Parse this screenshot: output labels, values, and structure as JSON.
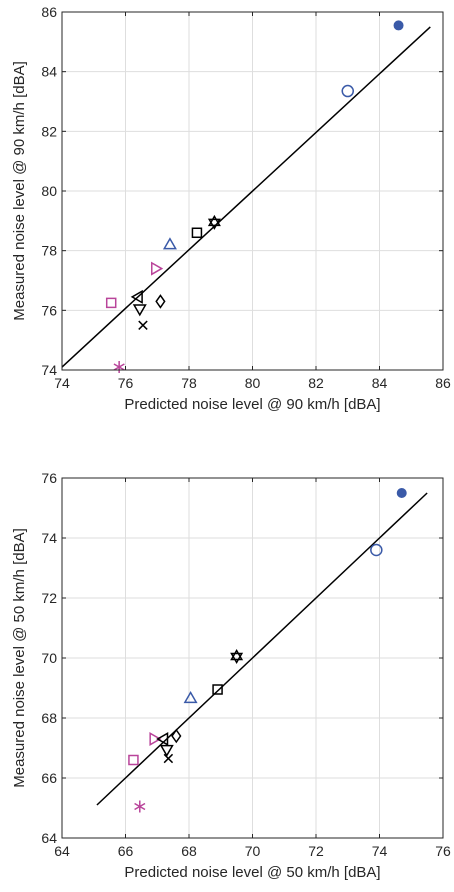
{
  "colors": {
    "black": "#000000",
    "blue": "#3a5aa8",
    "magenta": "#b9449a",
    "grid": "#dedede",
    "axis": "#262626"
  },
  "chart_data": [
    {
      "type": "scatter",
      "xlabel": "Predicted noise level @ 90 km/h [dBA]",
      "ylabel": "Measured noise level @ 90 km/h [dBA]",
      "xlim": [
        74,
        86
      ],
      "ylim": [
        74,
        86
      ],
      "xticks": [
        "74",
        "76",
        "78",
        "80",
        "82",
        "84",
        "86"
      ],
      "yticks": [
        "74",
        "76",
        "78",
        "80",
        "82",
        "84",
        "86"
      ],
      "grid": true,
      "fit_line": {
        "x": [
          74,
          85.6
        ],
        "y": [
          74.1,
          85.5
        ]
      },
      "points": [
        {
          "marker": "filled-circle",
          "color": "blue",
          "x": 84.6,
          "y": 85.55
        },
        {
          "marker": "circle",
          "color": "blue",
          "x": 83.0,
          "y": 83.35
        },
        {
          "marker": "hexagram",
          "color": "black",
          "x": 78.8,
          "y": 78.95
        },
        {
          "marker": "square",
          "color": "black",
          "x": 78.25,
          "y": 78.6
        },
        {
          "marker": "triangle-up",
          "color": "blue",
          "x": 77.4,
          "y": 78.2
        },
        {
          "marker": "triangle-right",
          "color": "magenta",
          "x": 76.95,
          "y": 77.4
        },
        {
          "marker": "triangle-left",
          "color": "black",
          "x": 76.4,
          "y": 76.45
        },
        {
          "marker": "diamond",
          "color": "black",
          "x": 77.1,
          "y": 76.3
        },
        {
          "marker": "square",
          "color": "magenta",
          "x": 75.55,
          "y": 76.25
        },
        {
          "marker": "triangle-down",
          "color": "black",
          "x": 76.45,
          "y": 76.05
        },
        {
          "marker": "x",
          "color": "black",
          "x": 76.55,
          "y": 75.5
        },
        {
          "marker": "asterisk",
          "color": "magenta",
          "x": 75.8,
          "y": 74.1
        }
      ]
    },
    {
      "type": "scatter",
      "xlabel": "Predicted noise level @ 50 km/h [dBA]",
      "ylabel": "Measured noise level @ 50 km/h [dBA]",
      "xlim": [
        64,
        76
      ],
      "ylim": [
        64,
        76
      ],
      "xticks": [
        "64",
        "66",
        "68",
        "70",
        "72",
        "74",
        "76"
      ],
      "yticks": [
        "64",
        "66",
        "68",
        "70",
        "72",
        "74",
        "76"
      ],
      "grid": true,
      "fit_line": {
        "x": [
          65.1,
          75.5
        ],
        "y": [
          65.1,
          75.5
        ]
      },
      "points": [
        {
          "marker": "filled-circle",
          "color": "blue",
          "x": 74.7,
          "y": 75.5
        },
        {
          "marker": "circle",
          "color": "blue",
          "x": 73.9,
          "y": 73.6
        },
        {
          "marker": "hexagram",
          "color": "black",
          "x": 69.5,
          "y": 70.05
        },
        {
          "marker": "square",
          "color": "black",
          "x": 68.9,
          "y": 68.95
        },
        {
          "marker": "triangle-up",
          "color": "blue",
          "x": 68.05,
          "y": 68.65
        },
        {
          "marker": "diamond",
          "color": "black",
          "x": 67.6,
          "y": 67.4
        },
        {
          "marker": "triangle-right",
          "color": "magenta",
          "x": 66.9,
          "y": 67.3
        },
        {
          "marker": "triangle-left",
          "color": "black",
          "x": 67.2,
          "y": 67.3
        },
        {
          "marker": "triangle-down",
          "color": "black",
          "x": 67.3,
          "y": 66.95
        },
        {
          "marker": "x",
          "color": "black",
          "x": 67.35,
          "y": 66.65
        },
        {
          "marker": "square",
          "color": "magenta",
          "x": 66.25,
          "y": 66.6
        },
        {
          "marker": "asterisk",
          "color": "magenta",
          "x": 66.45,
          "y": 65.05
        }
      ]
    }
  ]
}
